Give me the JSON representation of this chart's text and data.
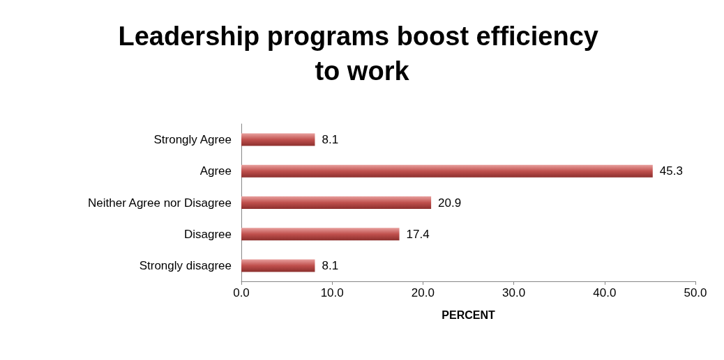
{
  "chart_data": {
    "type": "bar",
    "orientation": "horizontal",
    "title": "Leadership programs boost efficiency to work",
    "xlabel": "PERCENT",
    "categories": [
      "Strongly Agree",
      "Agree",
      "Neither Agree nor Disagree",
      "Disagree",
      "Strongly disagree"
    ],
    "values": [
      8.1,
      45.3,
      20.9,
      17.4,
      8.1
    ],
    "color": "#c0504d",
    "xlim": [
      0,
      50
    ],
    "xticks": [
      {
        "value": 0,
        "label": "0.0"
      },
      {
        "value": 10,
        "label": "10.0"
      },
      {
        "value": 20,
        "label": "20.0"
      },
      {
        "value": 30,
        "label": "30.0"
      },
      {
        "value": 40,
        "label": "40.0"
      },
      {
        "value": 50,
        "label": "50.0"
      }
    ],
    "data_labels": true
  }
}
